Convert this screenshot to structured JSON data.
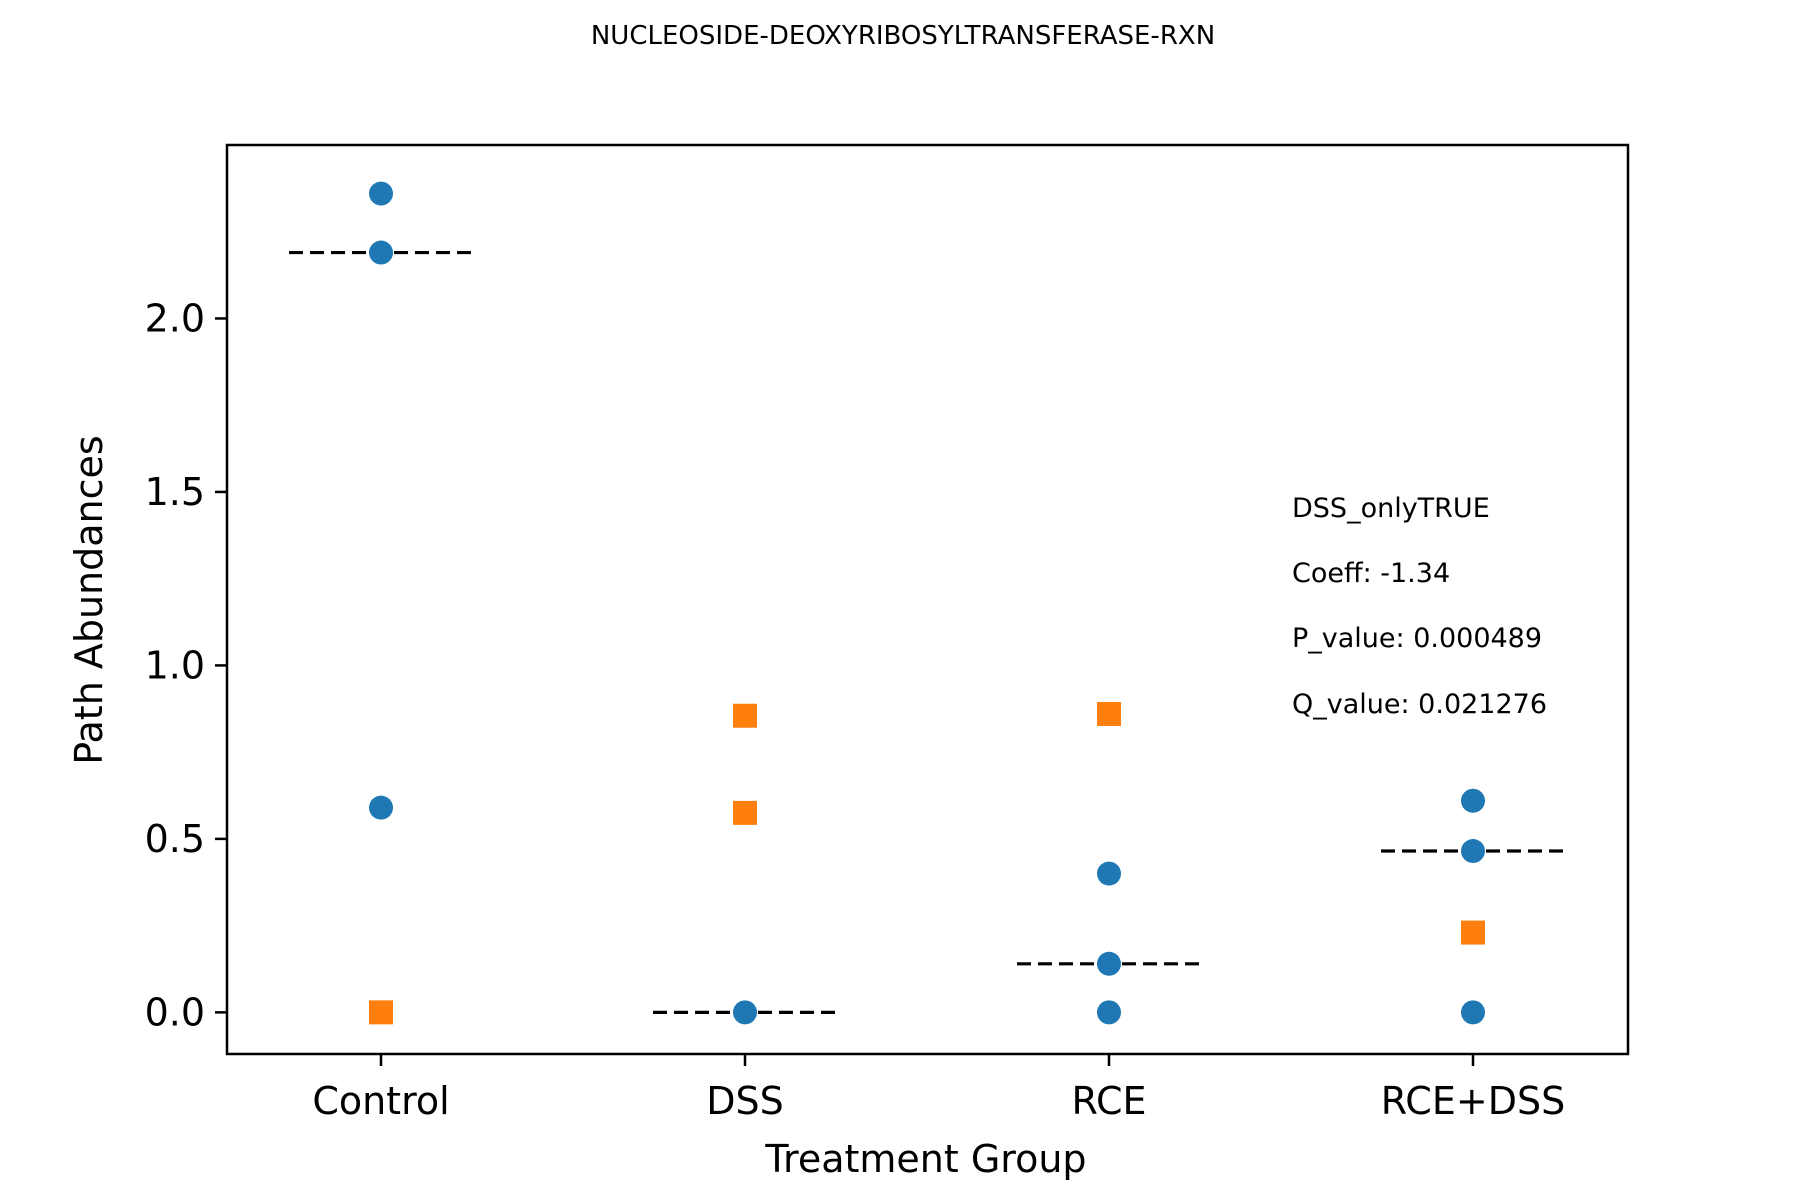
{
  "chart_data": {
    "type": "scatter",
    "title": "NUCLEOSIDE-DEOXYRIBOSYLTRANSFERASE-RXN",
    "xlabel": "Treatment Group",
    "ylabel": "Path Abundances",
    "categories": [
      "Control",
      "DSS",
      "RCE",
      "RCE+DSS"
    ],
    "ylim": [
      -0.12,
      2.5
    ],
    "yticks": [
      0.0,
      0.5,
      1.0,
      1.5,
      2.0
    ],
    "ytick_labels": [
      "0.0",
      "0.5",
      "1.0",
      "1.5",
      "2.0"
    ],
    "grid": false,
    "series": [
      {
        "marker": "circle",
        "color": "#1f77b4",
        "points": [
          {
            "category": "Control",
            "y": 2.36
          },
          {
            "category": "Control",
            "y": 2.19
          },
          {
            "category": "Control",
            "y": 0.59
          },
          {
            "category": "DSS",
            "y": 0.0
          },
          {
            "category": "RCE",
            "y": 0.4
          },
          {
            "category": "RCE",
            "y": 0.14
          },
          {
            "category": "RCE",
            "y": 0.0
          },
          {
            "category": "RCE+DSS",
            "y": 0.61
          },
          {
            "category": "RCE+DSS",
            "y": 0.465
          },
          {
            "category": "RCE+DSS",
            "y": 0.0
          }
        ]
      },
      {
        "marker": "square",
        "color": "#ff7f0e",
        "points": [
          {
            "category": "Control",
            "y": 0.0
          },
          {
            "category": "DSS",
            "y": 0.855
          },
          {
            "category": "DSS",
            "y": 0.575
          },
          {
            "category": "RCE",
            "y": 0.86
          },
          {
            "category": "RCE+DSS",
            "y": 0.23
          }
        ]
      }
    ],
    "medians": [
      {
        "category": "Control",
        "y": 2.19
      },
      {
        "category": "DSS",
        "y": 0.0
      },
      {
        "category": "RCE",
        "y": 0.14
      },
      {
        "category": "RCE+DSS",
        "y": 0.465
      }
    ],
    "median_line_color": "#000000",
    "annotations": [
      "DSS_onlyTRUE",
      "Coeff: -1.34",
      "P_value: 0.000489",
      "Q_value: 0.021276"
    ]
  }
}
